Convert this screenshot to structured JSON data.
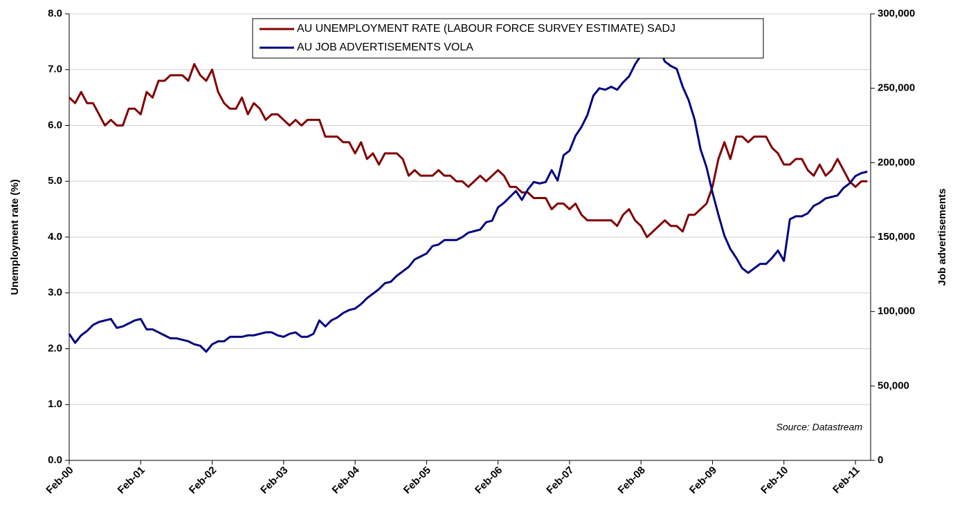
{
  "chart_data": {
    "type": "line",
    "categories": [
      "Feb-00",
      null,
      null,
      null,
      null,
      null,
      null,
      null,
      null,
      null,
      null,
      null,
      "Feb-01",
      null,
      null,
      null,
      null,
      null,
      null,
      null,
      null,
      null,
      null,
      null,
      "Feb-02",
      null,
      null,
      null,
      null,
      null,
      null,
      null,
      null,
      null,
      null,
      null,
      "Feb-03",
      null,
      null,
      null,
      null,
      null,
      null,
      null,
      null,
      null,
      null,
      null,
      "Feb-04",
      null,
      null,
      null,
      null,
      null,
      null,
      null,
      null,
      null,
      null,
      null,
      "Feb-05",
      null,
      null,
      null,
      null,
      null,
      null,
      null,
      null,
      null,
      null,
      null,
      "Feb-06",
      null,
      null,
      null,
      null,
      null,
      null,
      null,
      null,
      null,
      null,
      null,
      "Feb-07",
      null,
      null,
      null,
      null,
      null,
      null,
      null,
      null,
      null,
      null,
      null,
      "Feb-08",
      null,
      null,
      null,
      null,
      null,
      null,
      null,
      null,
      null,
      null,
      null,
      "Feb-09",
      null,
      null,
      null,
      null,
      null,
      null,
      null,
      null,
      null,
      null,
      null,
      "Feb-10",
      null,
      null,
      null,
      null,
      null,
      null,
      null,
      null,
      null,
      null,
      null,
      "Feb-11",
      null,
      null
    ],
    "series": [
      {
        "name": "AU UNEMPLOYMENT RATE (LABOUR FORCE SURVEY ESTIMATE) SADJ",
        "color": "#800000",
        "values": [
          6.5,
          6.4,
          6.6,
          6.4,
          6.4,
          6.2,
          6.0,
          6.1,
          6.0,
          6.0,
          6.3,
          6.3,
          6.2,
          6.6,
          6.5,
          6.8,
          6.8,
          6.9,
          6.9,
          6.9,
          6.8,
          7.1,
          6.9,
          6.8,
          7.0,
          6.6,
          6.4,
          6.3,
          6.3,
          6.5,
          6.2,
          6.4,
          6.3,
          6.1,
          6.2,
          6.2,
          6.1,
          6.0,
          6.1,
          6.0,
          6.1,
          6.1,
          6.1,
          5.8,
          5.8,
          5.8,
          5.7,
          5.7,
          5.5,
          5.7,
          5.4,
          5.5,
          5.3,
          5.5,
          5.5,
          5.5,
          5.4,
          5.1,
          5.2,
          5.1,
          5.1,
          5.1,
          5.2,
          5.1,
          5.1,
          5.0,
          5.0,
          4.9,
          5.0,
          5.1,
          5.0,
          5.1,
          5.2,
          5.1,
          4.9,
          4.9,
          4.8,
          4.8,
          4.7,
          4.7,
          4.7,
          4.5,
          4.6,
          4.6,
          4.5,
          4.6,
          4.4,
          4.3,
          4.3,
          4.3,
          4.3,
          4.3,
          4.2,
          4.4,
          4.5,
          4.3,
          4.2,
          4.0,
          4.1,
          4.2,
          4.3,
          4.2,
          4.2,
          4.1,
          4.4,
          4.4,
          4.5,
          4.6,
          4.9,
          5.4,
          5.7,
          5.4,
          5.8,
          5.8,
          5.7,
          5.8,
          5.8,
          5.8,
          5.6,
          5.5,
          5.3,
          5.3,
          5.4,
          5.4,
          5.2,
          5.1,
          5.3,
          5.1,
          5.2,
          5.4,
          5.2,
          5.0,
          4.9,
          5.0,
          5.0
        ]
      },
      {
        "name": "AU JOB ADVERTISEMENTS VOLA",
        "color": "#000080",
        "axis": "y2",
        "values": [
          85000,
          79000,
          84000,
          87000,
          91000,
          93000,
          94000,
          95000,
          89000,
          90000,
          92000,
          94000,
          95000,
          88000,
          88000,
          86000,
          84000,
          82000,
          82000,
          81000,
          80000,
          78000,
          77000,
          73000,
          78000,
          80000,
          80000,
          83000,
          83000,
          83000,
          84000,
          84000,
          85000,
          86000,
          86000,
          84000,
          83000,
          85000,
          86000,
          83000,
          83000,
          85000,
          94000,
          90000,
          94000,
          96000,
          99000,
          101000,
          102000,
          105000,
          109000,
          112000,
          115000,
          119000,
          120000,
          124000,
          127000,
          130000,
          135000,
          137000,
          139000,
          144000,
          145000,
          148000,
          148000,
          148000,
          150000,
          153000,
          154000,
          155000,
          160000,
          161000,
          170000,
          173000,
          177000,
          181000,
          175000,
          182000,
          187000,
          186000,
          187000,
          195000,
          188000,
          205000,
          208000,
          218000,
          224000,
          232000,
          245000,
          250000,
          249000,
          251000,
          249000,
          254000,
          258000,
          266000,
          272000,
          271000,
          276000,
          277000,
          268000,
          265000,
          263000,
          251000,
          242000,
          229000,
          209000,
          197000,
          180000,
          165000,
          151000,
          142000,
          136000,
          129000,
          126000,
          129000,
          132000,
          132000,
          136000,
          141000,
          134000,
          162000,
          164000,
          164000,
          166000,
          171000,
          173000,
          176000,
          177000,
          178000,
          183000,
          186000,
          191000,
          193000,
          194000
        ]
      }
    ],
    "ylabel": "Unemployment rate (%)",
    "y2label": "Job advertisements",
    "ylim": [
      0,
      8
    ],
    "yticks": [
      {
        "value": 0,
        "label": "0.0"
      },
      {
        "value": 1,
        "label": "1.0"
      },
      {
        "value": 2,
        "label": "2.0"
      },
      {
        "value": 3,
        "label": "3.0"
      },
      {
        "value": 4,
        "label": "4.0"
      },
      {
        "value": 5,
        "label": "5.0"
      },
      {
        "value": 6,
        "label": "6.0"
      },
      {
        "value": 7,
        "label": "7.0"
      },
      {
        "value": 8,
        "label": "8.0"
      }
    ],
    "y2lim": [
      0,
      300000
    ],
    "y2ticks": [
      0,
      {
        "value": 50000,
        "label": "50,000"
      },
      {
        "value": 100000,
        "label": "100,000"
      },
      {
        "value": 150000,
        "label": "150,000"
      },
      {
        "value": 200000,
        "label": "200,000"
      },
      {
        "value": 250000,
        "label": "250,000"
      },
      {
        "value": 300000,
        "label": "300,000"
      }
    ],
    "annotation": "Source: Datastream",
    "grid": true,
    "legend": "top"
  }
}
